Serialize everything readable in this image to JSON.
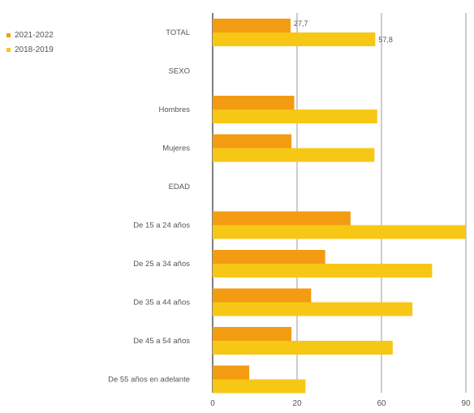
{
  "chart_data": {
    "type": "bar",
    "orientation": "horizontal",
    "title": "",
    "xlabel": "",
    "ylabel": "",
    "categories": [
      "TOTAL",
      "SEXO",
      "Hombres",
      "Mujeres",
      "EDAD",
      "De 15 a 24 años",
      "De 25 a 34 años",
      "De 35 a 44 años",
      "De 45 a 54 años",
      "De 55 años en adelante"
    ],
    "series": [
      {
        "name": "2021-2022",
        "color": "#f39c12",
        "values": [
          27.7,
          null,
          29,
          28,
          null,
          49,
          40,
          35,
          28,
          13
        ]
      },
      {
        "name": "2018-2019",
        "color": "#f7c716",
        "values": [
          57.8,
          null,
          58.5,
          57.5,
          null,
          90,
          78,
          71,
          64,
          33
        ]
      }
    ],
    "data_labels": [
      {
        "series": "2021-2022",
        "category": "TOTAL",
        "text": "27,7"
      },
      {
        "series": "2018-2019",
        "category": "TOTAL",
        "text": "57,8"
      }
    ],
    "xticks": [
      "0",
      "20",
      "60",
      "90"
    ],
    "xlim": [
      0,
      90
    ],
    "grid": true,
    "legend_position": "top-left"
  }
}
